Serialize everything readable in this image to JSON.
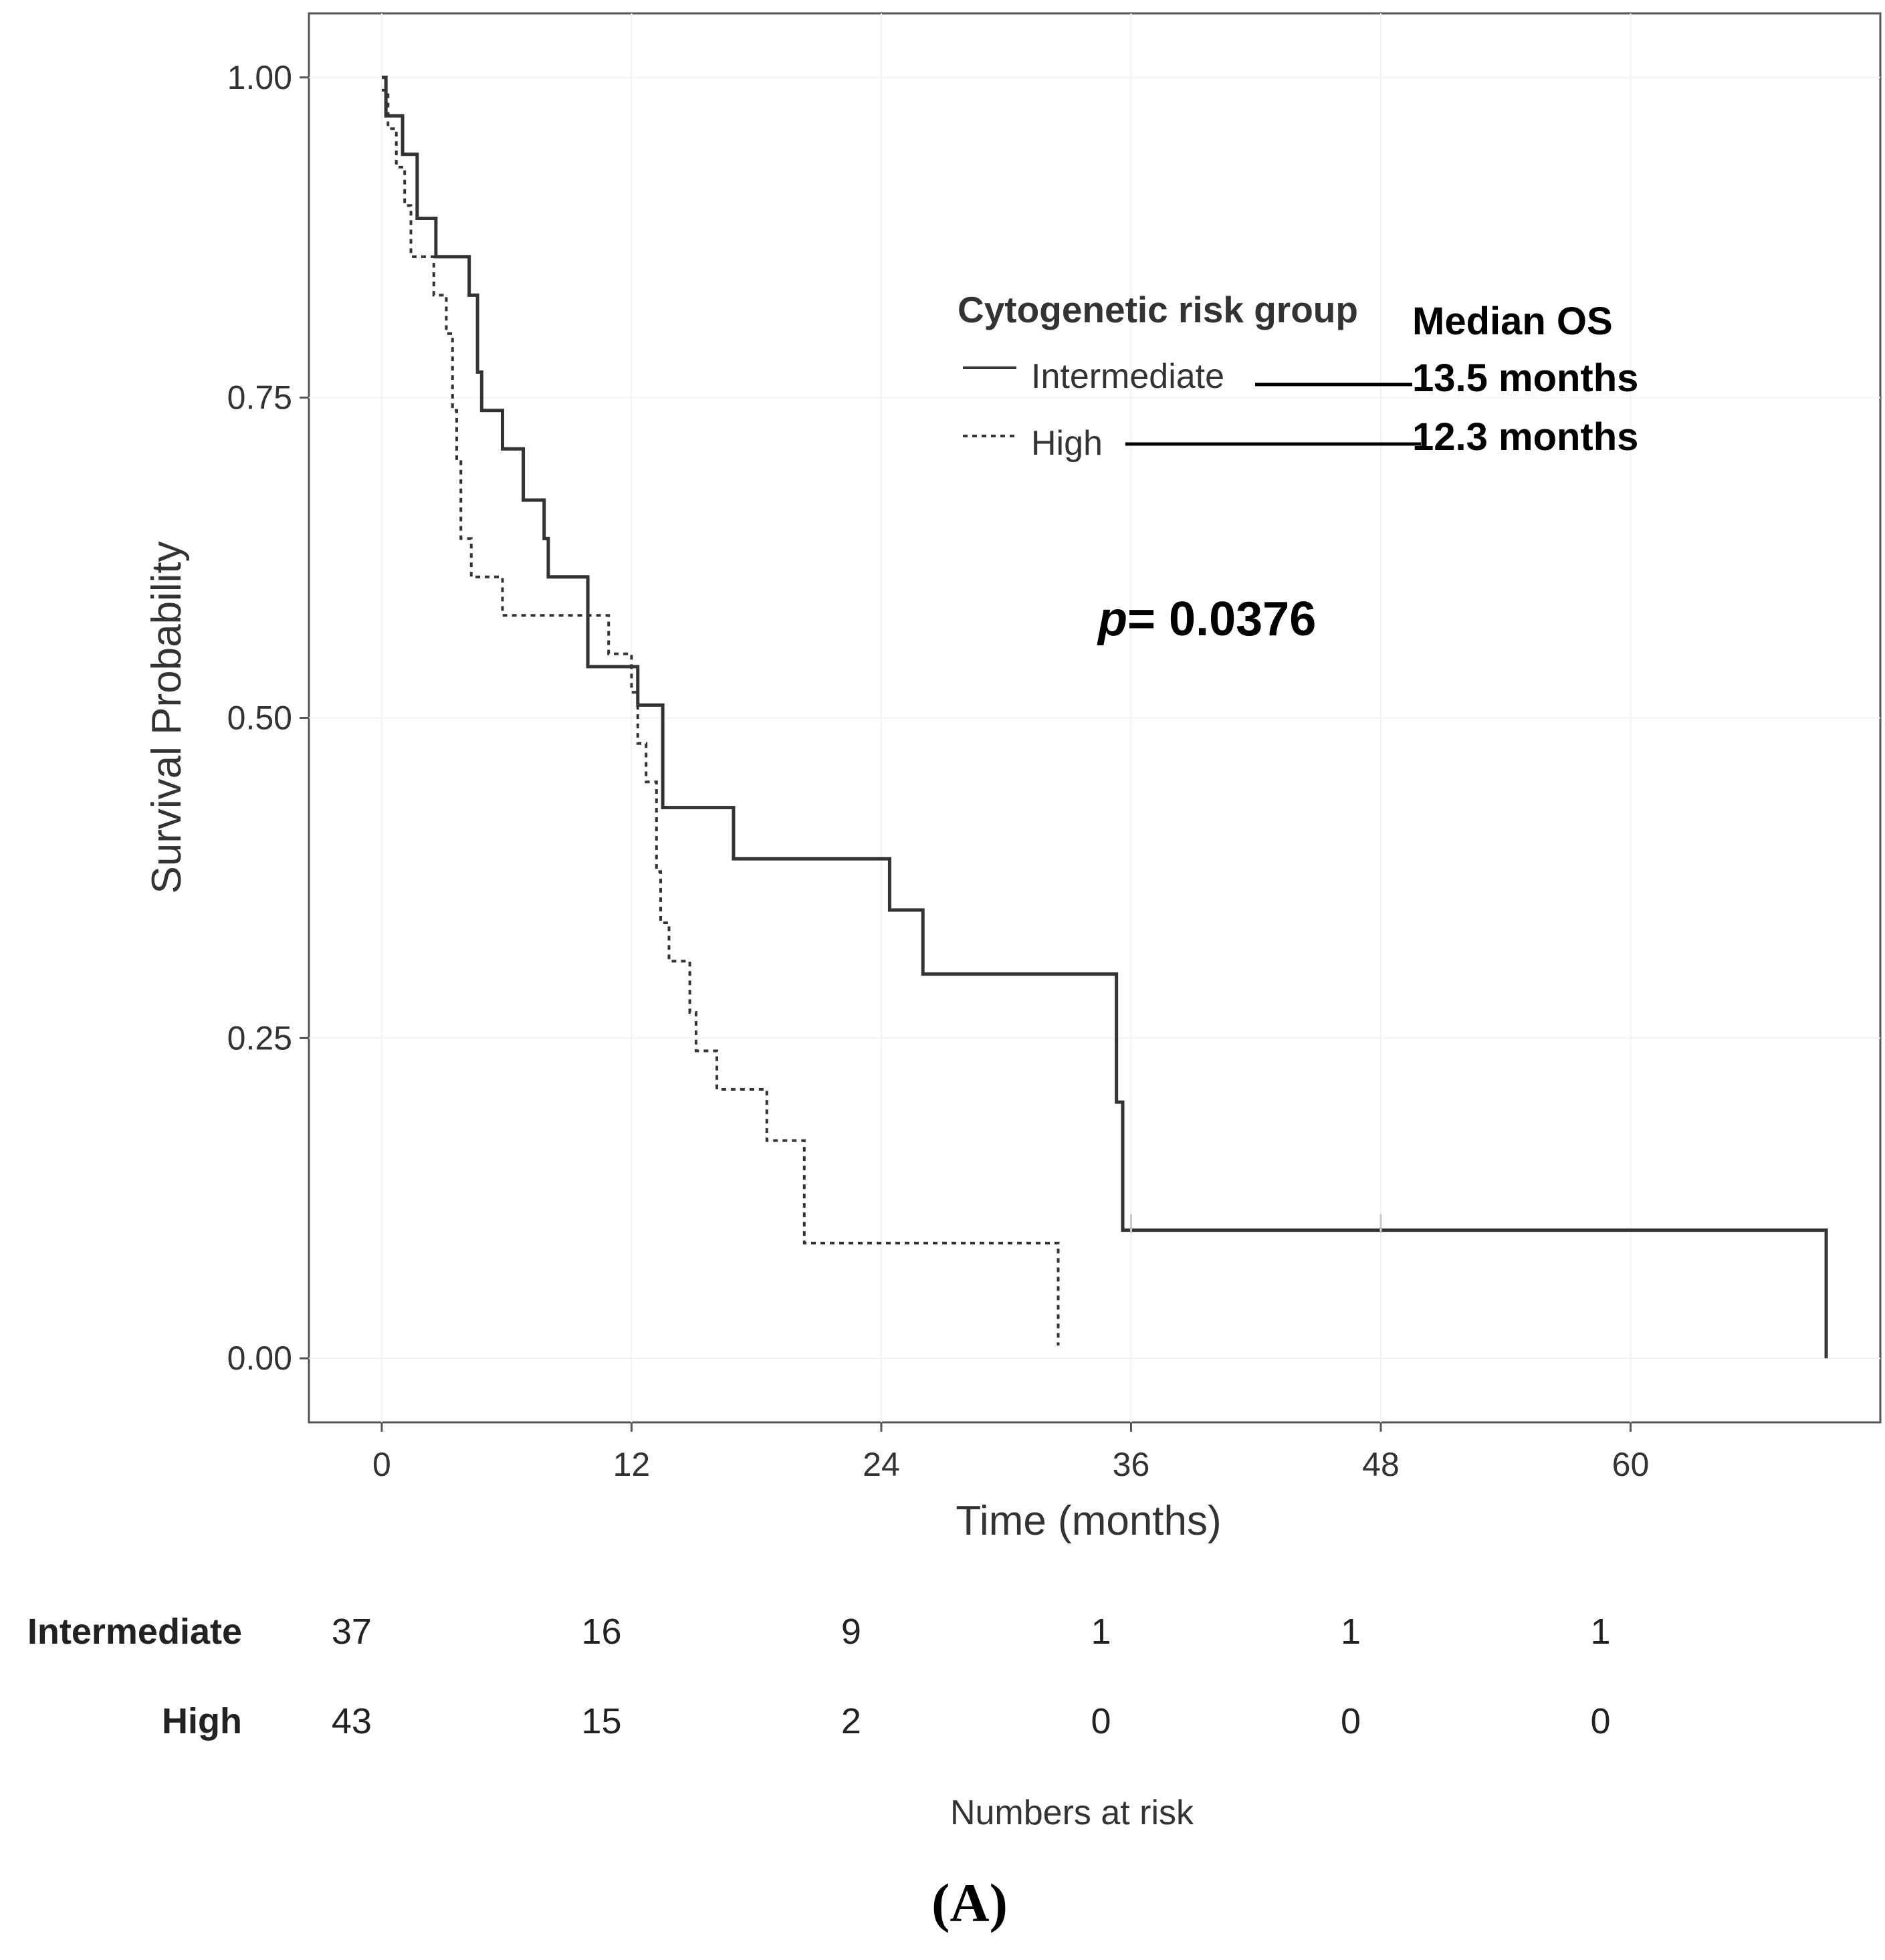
{
  "chart_data": {
    "type": "line",
    "title": "",
    "xlabel": "Time (months)",
    "ylabel": "Survival Probability",
    "xlim": [
      -3.5,
      72
    ],
    "ylim": [
      -0.05,
      1.05
    ],
    "x_ticks": [
      "0",
      "12",
      "24",
      "36",
      "48",
      "60"
    ],
    "y_ticks": [
      "0.00",
      "0.25",
      "0.50",
      "0.75",
      "1.00"
    ],
    "series": [
      {
        "name": "Intermediate",
        "style": "solid",
        "steps": [
          [
            0,
            1.0
          ],
          [
            0.2,
            0.97
          ],
          [
            1.0,
            0.94
          ],
          [
            1.7,
            0.89
          ],
          [
            2.6,
            0.86
          ],
          [
            4.2,
            0.83
          ],
          [
            4.6,
            0.77
          ],
          [
            4.8,
            0.74
          ],
          [
            5.8,
            0.71
          ],
          [
            6.8,
            0.67
          ],
          [
            7.8,
            0.64
          ],
          [
            8.0,
            0.61
          ],
          [
            9.9,
            0.54
          ],
          [
            12.3,
            0.51
          ],
          [
            13.5,
            0.43
          ],
          [
            16.9,
            0.39
          ],
          [
            24.4,
            0.35
          ],
          [
            26.0,
            0.3
          ],
          [
            35.3,
            0.2
          ],
          [
            35.6,
            0.1
          ],
          [
            69.4,
            0.1
          ],
          [
            69.4,
            0.0
          ]
        ],
        "censor_marks": [
          36.0,
          48.0
        ]
      },
      {
        "name": "High",
        "style": "dotted",
        "steps": [
          [
            0,
            0.99
          ],
          [
            0.3,
            0.96
          ],
          [
            0.7,
            0.93
          ],
          [
            1.1,
            0.9
          ],
          [
            1.4,
            0.86
          ],
          [
            2.5,
            0.83
          ],
          [
            3.1,
            0.8
          ],
          [
            3.4,
            0.74
          ],
          [
            3.6,
            0.7
          ],
          [
            3.8,
            0.64
          ],
          [
            4.3,
            0.61
          ],
          [
            5.8,
            0.58
          ],
          [
            10.9,
            0.55
          ],
          [
            12.0,
            0.52
          ],
          [
            12.3,
            0.48
          ],
          [
            12.7,
            0.45
          ],
          [
            13.2,
            0.38
          ],
          [
            13.4,
            0.34
          ],
          [
            13.8,
            0.31
          ],
          [
            14.8,
            0.27
          ],
          [
            15.1,
            0.24
          ],
          [
            16.1,
            0.21
          ],
          [
            18.5,
            0.17
          ],
          [
            20.3,
            0.09
          ],
          [
            32.5,
            0.09
          ],
          [
            32.5,
            0.01
          ]
        ],
        "censor_marks": []
      }
    ],
    "legend": {
      "title": "Cytogenetic risk group",
      "placement": "top-right",
      "entries": [
        "Intermediate",
        "High"
      ]
    },
    "median_os": {
      "heading": "Median OS",
      "values": [
        "13.5 months",
        "12.3 months"
      ]
    },
    "annotation_p": {
      "prefix": "p",
      "text": "= 0.0376"
    },
    "risk_table": {
      "title": "Numbers at risk",
      "rows": [
        {
          "label": "Intermediate",
          "values": [
            "37",
            "16",
            "9",
            "1",
            "1",
            "1"
          ]
        },
        {
          "label": "High",
          "values": [
            "43",
            "15",
            "2",
            "0",
            "0",
            "0"
          ]
        }
      ]
    },
    "panel_label": "(A)"
  }
}
